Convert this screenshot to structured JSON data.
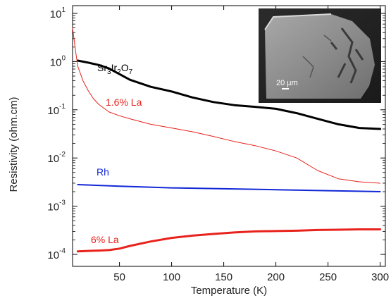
{
  "chart_data": {
    "type": "line",
    "xlabel": "Temperature (K)",
    "ylabel": "Resistivity (ohm.cm)",
    "xlim": [
      5,
      305
    ],
    "ylim": [
      0.0001,
      10
    ],
    "y_scale": "log",
    "grid": false,
    "x_ticks": [
      50,
      100,
      150,
      200,
      250,
      300
    ],
    "x_tick_labels": [
      "50",
      "100",
      "150",
      "200",
      "250",
      "300"
    ],
    "y_ticks": [
      10,
      1,
      0.1,
      0.01,
      0.001,
      0.0001
    ],
    "y_tick_labels": [
      {
        "base": "10",
        "exp": "1"
      },
      {
        "base": "10",
        "exp": "0"
      },
      {
        "base": "10",
        "exp": "-1"
      },
      {
        "base": "10",
        "exp": "-2"
      },
      {
        "base": "10",
        "exp": "-3"
      },
      {
        "base": "10",
        "exp": "-4"
      }
    ],
    "series": [
      {
        "name": "Sr3Ir2O7",
        "color": "#000000",
        "stroke": "thick",
        "x": [
          10,
          20,
          30,
          40,
          50,
          60,
          80,
          100,
          120,
          140,
          160,
          180,
          200,
          220,
          240,
          260,
          280,
          300
        ],
        "y": [
          1.05,
          0.95,
          0.85,
          0.72,
          0.55,
          0.42,
          0.3,
          0.24,
          0.18,
          0.145,
          0.125,
          0.115,
          0.105,
          0.085,
          0.065,
          0.05,
          0.042,
          0.04
        ]
      },
      {
        "name": "1.6% La",
        "color": "#e8221c",
        "stroke": "thin",
        "x": [
          5,
          8,
          10,
          15,
          20,
          25,
          30,
          40,
          50,
          60,
          80,
          100,
          120,
          140,
          160,
          180,
          200,
          220,
          240,
          260,
          280,
          300
        ],
        "y": [
          5,
          1.6,
          0.8,
          0.4,
          0.25,
          0.17,
          0.13,
          0.09,
          0.075,
          0.065,
          0.05,
          0.042,
          0.035,
          0.028,
          0.022,
          0.018,
          0.014,
          0.01,
          0.0055,
          0.0037,
          0.0032,
          0.003
        ]
      },
      {
        "name": "Rh",
        "color": "#1228d6",
        "stroke": "medium",
        "x": [
          10,
          50,
          100,
          150,
          200,
          250,
          300
        ],
        "y": [
          0.0028,
          0.0026,
          0.0024,
          0.0023,
          0.0022,
          0.0021,
          0.002
        ]
      },
      {
        "name": "6% La",
        "color": "#e8221c",
        "stroke": "thick",
        "x": [
          10,
          20,
          30,
          40,
          50,
          60,
          80,
          100,
          120,
          140,
          160,
          180,
          200,
          220,
          240,
          260,
          280,
          300
        ],
        "y": [
          0.000115,
          0.000118,
          0.00012,
          0.000123,
          0.000132,
          0.00015,
          0.000185,
          0.00022,
          0.000245,
          0.000265,
          0.000285,
          0.0003,
          0.000305,
          0.00031,
          0.00032,
          0.000325,
          0.00033,
          0.00033
        ]
      }
    ],
    "series_labels": [
      {
        "key": "sr",
        "text": "Sr3Ir2O7",
        "color": "#000000"
      },
      {
        "key": "la16",
        "text": "1.6% La",
        "color": "#e8221c"
      },
      {
        "key": "rh",
        "text": "Rh",
        "color": "#1228d6"
      },
      {
        "key": "la6",
        "text": "6% La",
        "color": "#e8221c"
      }
    ],
    "inset": {
      "scale_bar_label": "20 µm"
    }
  }
}
